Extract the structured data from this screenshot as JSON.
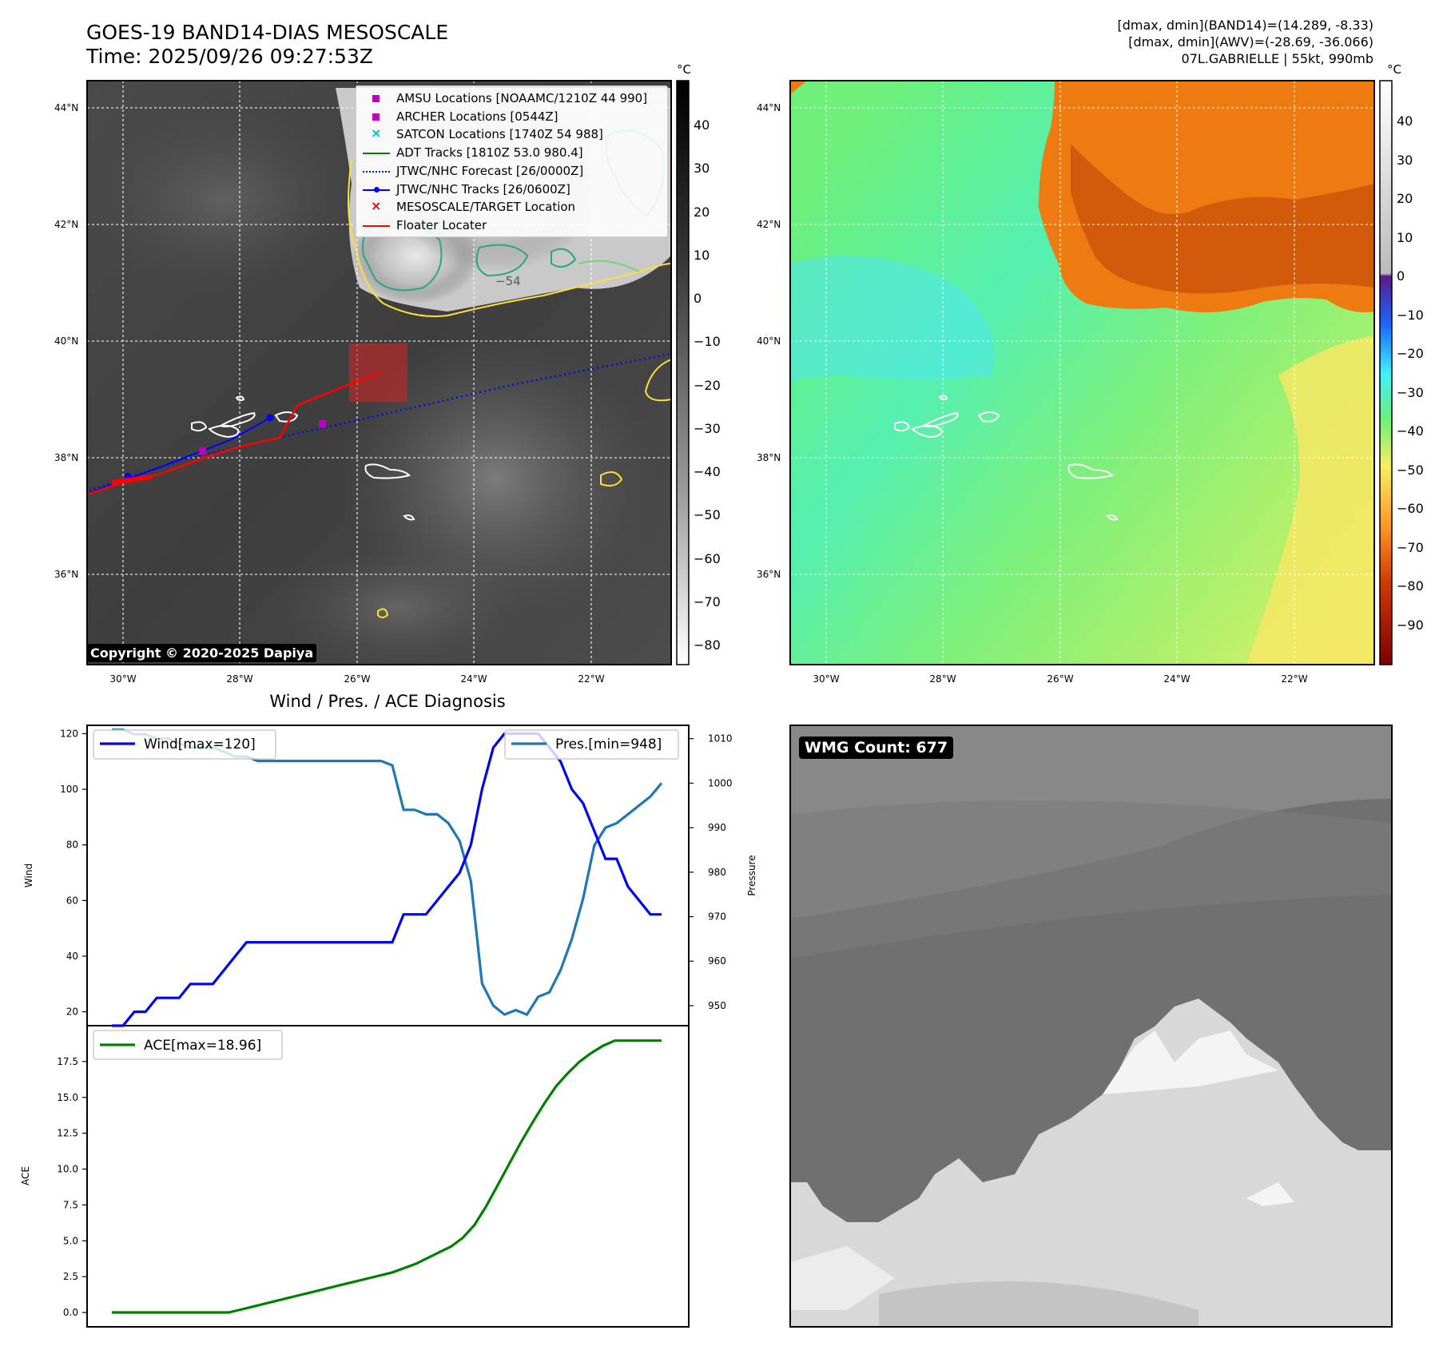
{
  "header": {
    "title": "GOES-19 BAND14-DIAS MESOSCALE",
    "time": "Time: 2025/09/26 09:27:53Z",
    "dmax_band14": "[dmax, dmin](BAND14)=(14.289, -8.33)",
    "dmax_awv": "[dmax, dmin](AWV)=(-28.69, -36.066)",
    "storm": "07L.GABRIELLE | 55kt, 990mb"
  },
  "map": {
    "lon_ticks": [
      "30°W",
      "28°W",
      "26°W",
      "24°W",
      "22°W"
    ],
    "lat_ticks": [
      "44°N",
      "42°N",
      "40°N",
      "38°N",
      "36°N"
    ],
    "contour_label": "−54",
    "copyright": "Copyright © 2020-2025 Dapiya",
    "legend": [
      {
        "label": "AMSU Locations [NOAAMC/1210Z 44 990]",
        "color": "#bf00bf",
        "marker": "square"
      },
      {
        "label": "ARCHER Locations [0544Z]",
        "color": "#bf00bf",
        "marker": "square"
      },
      {
        "label": "SATCON Locations [1740Z 54 988]",
        "color": "#00bfbf",
        "marker": "x"
      },
      {
        "label": "ADT Tracks [1810Z 53.0 980.4]",
        "color": "#008000",
        "marker": "line"
      },
      {
        "label": "JTWC/NHC Forecast [26/0000Z]",
        "color": "#0000ff",
        "marker": "dotted"
      },
      {
        "label": "JTWC/NHC Tracks [26/0600Z]",
        "color": "#0000ff",
        "marker": "line-dot"
      },
      {
        "label": "MESOSCALE/TARGET Location",
        "color": "#ff0000",
        "marker": "x"
      },
      {
        "label": "Floater Locater",
        "color": "#ff0000",
        "marker": "line"
      }
    ]
  },
  "colorbars": {
    "unit": "°C",
    "gray_ticks": [
      "40",
      "30",
      "20",
      "10",
      "0",
      "−10",
      "−20",
      "−30",
      "−40",
      "−50",
      "−60",
      "−70",
      "−80"
    ],
    "color_ticks": [
      "40",
      "30",
      "20",
      "10",
      "0",
      "−10",
      "−20",
      "−30",
      "−40",
      "−50",
      "−60",
      "−70",
      "−80",
      "−90"
    ]
  },
  "diagnosis_title": "Wind / Pres. / ACE Diagnosis",
  "wmg_label": "WMG Count: 677",
  "colors": {
    "wind": "#0000ff",
    "pressure": "#1f77b4",
    "ace": "#008000",
    "floater": "#ff0000"
  },
  "chart_data": [
    {
      "type": "line",
      "title": "Wind / Pres. / ACE Diagnosis",
      "ylabel": "Wind",
      "y2label": "Pressure",
      "ylim": [
        15,
        123
      ],
      "y2lim": [
        945.5,
        1013
      ],
      "yticks": [
        "20",
        "40",
        "60",
        "80",
        "100",
        "120"
      ],
      "y2ticks": [
        "950",
        "960",
        "970",
        "980",
        "990",
        "1000",
        "1010"
      ],
      "series": [
        {
          "name": "Wind[max=120]",
          "values": [
            15,
            15,
            20,
            20,
            25,
            25,
            25,
            30,
            30,
            30,
            35,
            40,
            45,
            45,
            45,
            45,
            45,
            45,
            45,
            45,
            45,
            45,
            45,
            45,
            45,
            45,
            55,
            55,
            55,
            60,
            65,
            70,
            80,
            100,
            115,
            120,
            120,
            120,
            120,
            115,
            110,
            100,
            95,
            85,
            75,
            75,
            65,
            60,
            55,
            55
          ]
        },
        {
          "name": "Pres.[min=948]",
          "values": [
            1012,
            1012,
            1011,
            1011,
            1010,
            1010,
            1009,
            1008,
            1008,
            1008,
            1007,
            1006,
            1006,
            1005,
            1005,
            1005,
            1005,
            1005,
            1005,
            1005,
            1005,
            1005,
            1005,
            1005,
            1005,
            1004,
            994,
            994,
            993,
            993,
            991,
            987,
            978,
            955,
            950,
            948,
            949,
            948,
            952,
            953,
            958,
            965,
            974,
            986,
            990,
            991,
            993,
            995,
            997,
            1000
          ]
        }
      ]
    },
    {
      "type": "line",
      "ylabel": "ACE",
      "ylim": [
        -1.0,
        20.0
      ],
      "yticks": [
        "0.0",
        "2.5",
        "5.0",
        "7.5",
        "10.0",
        "12.5",
        "15.0",
        "17.5"
      ],
      "series": [
        {
          "name": "ACE[max=18.96]",
          "values": [
            0,
            0,
            0,
            0,
            0,
            0,
            0,
            0,
            0,
            0,
            0,
            0.2,
            0.4,
            0.6,
            0.8,
            1.0,
            1.2,
            1.4,
            1.6,
            1.8,
            2.0,
            2.2,
            2.4,
            2.6,
            2.8,
            3.1,
            3.4,
            3.8,
            4.2,
            4.6,
            5.2,
            6.1,
            7.4,
            8.9,
            10.4,
            11.9,
            13.3,
            14.6,
            15.8,
            16.7,
            17.5,
            18.1,
            18.6,
            18.96,
            18.96,
            18.96,
            18.96,
            18.96
          ]
        }
      ]
    }
  ]
}
